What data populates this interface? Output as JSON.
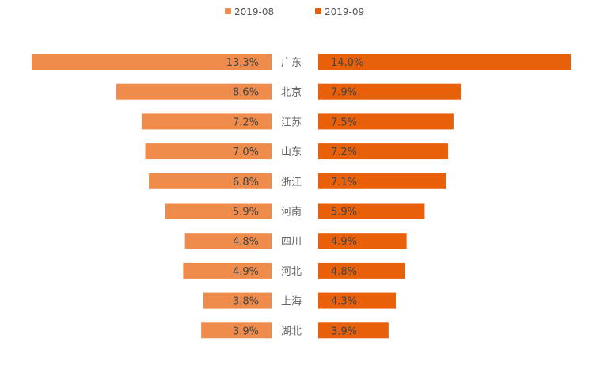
{
  "chart_data": {
    "type": "bar",
    "orientation": "horizontal-butterfly",
    "categories": [
      "广东",
      "北京",
      "江苏",
      "山东",
      "浙江",
      "河南",
      "四川",
      "河北",
      "上海",
      "湖北"
    ],
    "series": [
      {
        "name": "2019-08",
        "color": "#f08c4b",
        "values": [
          13.3,
          8.6,
          7.2,
          7.0,
          6.8,
          5.9,
          4.8,
          4.9,
          3.8,
          3.9
        ],
        "labels": [
          "13.3%",
          "8.6%",
          "7.2%",
          "7.0%",
          "6.8%",
          "5.9%",
          "4.8%",
          "4.9%",
          "3.8%",
          "3.9%"
        ]
      },
      {
        "name": "2019-09",
        "color": "#e8600a",
        "values": [
          14.0,
          7.9,
          7.5,
          7.2,
          7.1,
          5.9,
          4.9,
          4.8,
          4.3,
          3.9
        ],
        "labels": [
          "14.0%",
          "7.9%",
          "7.5%",
          "7.2%",
          "7.1%",
          "5.9%",
          "4.9%",
          "4.8%",
          "4.3%",
          "3.9%"
        ]
      }
    ],
    "legend": {
      "position": "top-center"
    },
    "unit": "%"
  }
}
